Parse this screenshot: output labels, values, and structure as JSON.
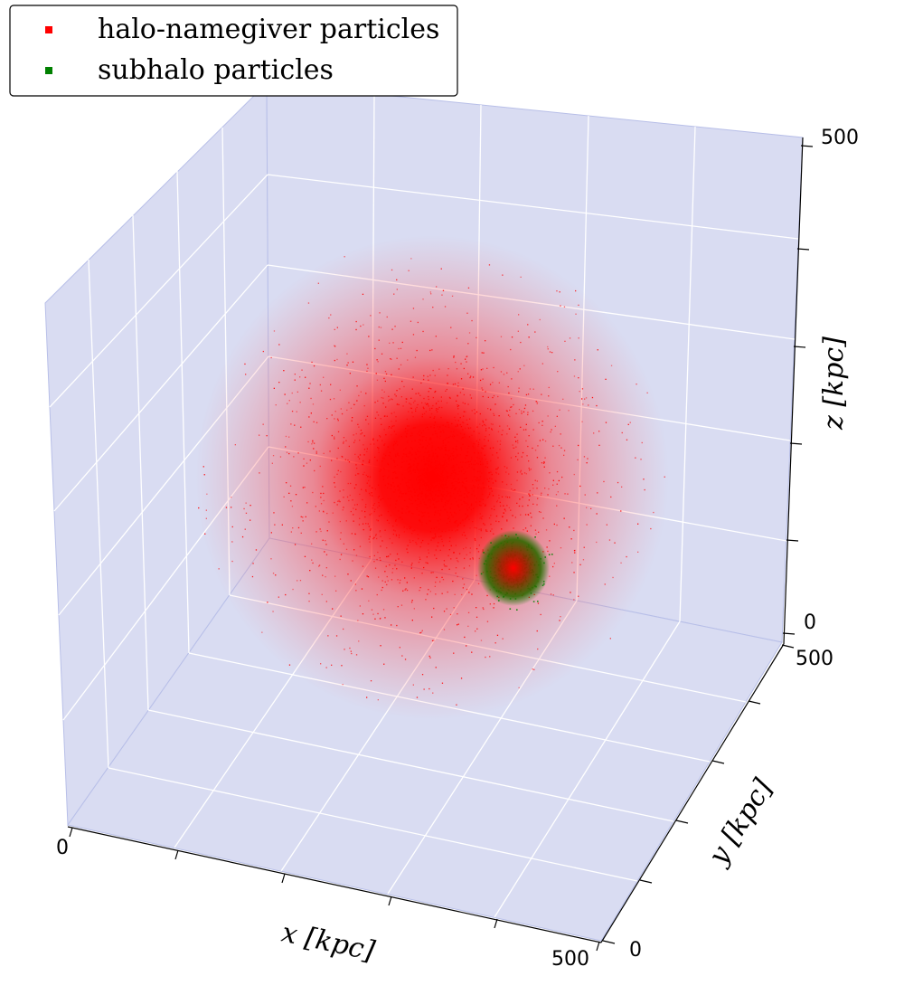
{
  "chart_data": {
    "type": "scatter",
    "projection": "3d",
    "xlabel": "x [kpc]",
    "ylabel": "y [kpc]",
    "zlabel": "z [kpc]",
    "xlim": [
      0,
      500
    ],
    "ylim": [
      0,
      500
    ],
    "zlim": [
      0,
      500
    ],
    "x_tick_labels": [
      "0",
      "500"
    ],
    "y_tick_labels": [
      "0",
      "500"
    ],
    "z_tick_labels": [
      "0",
      "500"
    ],
    "grid": true,
    "pane_color": "#d9dcf2",
    "legend_position": "top-left",
    "series": [
      {
        "name": "halo-namegiver particles",
        "color": "#ff0000",
        "center": [
          265,
          300,
          270
        ],
        "approx_radius": 240,
        "note_markers": "dense cloud of small point markers"
      },
      {
        "name": "subhalo particles",
        "color": "#008000",
        "center": [
          390,
          330,
          110
        ],
        "approx_radius": 40,
        "note_markers": "small compact cluster overlapping the halo"
      }
    ]
  }
}
